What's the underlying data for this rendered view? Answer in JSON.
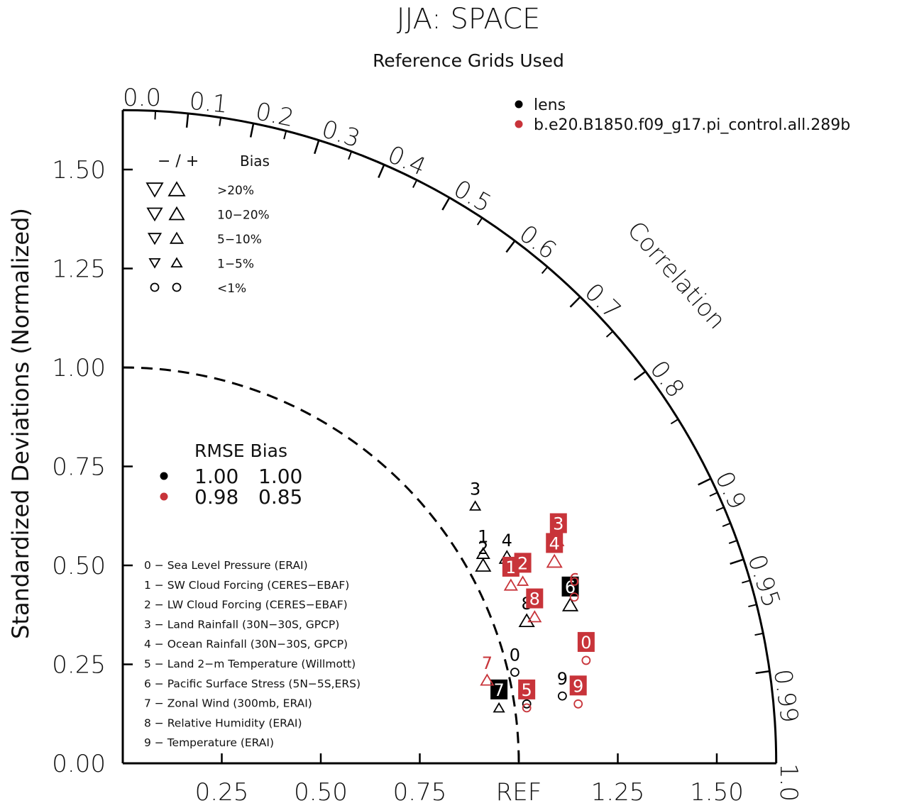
{
  "chart_data": {
    "type": "scatter",
    "subtype": "taylor-diagram",
    "title": "JJA: SPACE",
    "subtitle": "Reference Grids Used",
    "ylabel": "Standardized Deviations (Normalized)",
    "radial_label": "Correlation",
    "ref_label": "REF",
    "axis_range": [
      0,
      1.65
    ],
    "x_ticks": [
      "0.25",
      "0.50",
      "0.75",
      "REF",
      "1.25",
      "1.50"
    ],
    "x_tick_values": [
      0.25,
      0.5,
      0.75,
      1.0,
      1.25,
      1.5
    ],
    "y_ticks": [
      "0.00",
      "0.25",
      "0.50",
      "0.75",
      "1.00",
      "1.25",
      "1.50"
    ],
    "y_tick_values": [
      0,
      0.25,
      0.5,
      0.75,
      1.0,
      1.25,
      1.5
    ],
    "correlation_labels": [
      "0.0",
      "0.1",
      "0.2",
      "0.3",
      "0.4",
      "0.5",
      "0.6",
      "0.7",
      "0.8",
      "0.9",
      "0.95",
      "0.99",
      "1.0"
    ],
    "correlation_label_values": [
      0.0,
      0.1,
      0.2,
      0.3,
      0.4,
      0.5,
      0.6,
      0.7,
      0.8,
      0.9,
      0.95,
      0.99,
      1.0
    ],
    "correlation_minor_ticks": [
      0.05,
      0.15,
      0.25,
      0.35,
      0.45,
      0.55,
      0.65,
      0.75,
      0.85,
      0.91,
      0.92,
      0.93,
      0.94,
      0.96,
      0.97,
      0.98
    ],
    "ref_arc_radius": 1.0,
    "legend": {
      "series_placement": "top-right",
      "series": [
        {
          "name": "lens",
          "color": "#000000"
        },
        {
          "name": "b.e20.B1850.f09_g17.pi_control.all.289b",
          "color": "#c8343a"
        }
      ],
      "bias_key": {
        "header": [
          "−  /  +",
          "Bias"
        ],
        "rows": [
          {
            "label": ">20%",
            "symbol": "triangle",
            "size": 5
          },
          {
            "label": "10−20%",
            "symbol": "triangle",
            "size": 4
          },
          {
            "label": "5−10%",
            "symbol": "triangle",
            "size": 3
          },
          {
            "label": "1−5%",
            "symbol": "triangle",
            "size": 2
          },
          {
            "label": "<1%",
            "symbol": "circle",
            "size": 2
          }
        ]
      },
      "rmse_table": {
        "header": "RMSE Bias",
        "rows": [
          {
            "color": "#000000",
            "rmse": "1.00",
            "bias": "1.00"
          },
          {
            "color": "#c8343a",
            "rmse": "0.98",
            "bias": "0.85"
          }
        ]
      },
      "variables": [
        "0 − Sea Level Pressure (ERAI)",
        "1 − SW Cloud Forcing (CERES−EBAF)",
        "2 − LW Cloud Forcing (CERES−EBAF)",
        "3 − Land Rainfall (30N−30S, GPCP)",
        "4 − Ocean Rainfall (30N−30S, GPCP)",
        "5 − Land 2−m Temperature (Willmott)",
        "6 − Pacific Surface Stress (5N−5S,ERS)",
        "7 − Zonal Wind (300mb, ERAI)",
        "8 − Relative Humidity (ERAI)",
        "9 − Temperature (ERAI)"
      ]
    },
    "series": [
      {
        "name": "lens",
        "color": "#000000",
        "points": [
          {
            "label": "0",
            "x": 0.99,
            "y": 0.23,
            "symbol": "circle",
            "size": 2,
            "boxed": false
          },
          {
            "label": "1",
            "x": 0.91,
            "y": 0.53,
            "symbol": "triangle-up",
            "size": 3,
            "boxed": false
          },
          {
            "label": "2",
            "x": 0.91,
            "y": 0.5,
            "symbol": "triangle-up",
            "size": 4,
            "boxed": false
          },
          {
            "label": "3",
            "x": 0.89,
            "y": 0.65,
            "symbol": "triangle-up",
            "size": 2,
            "boxed": false
          },
          {
            "label": "4",
            "x": 0.97,
            "y": 0.52,
            "symbol": "triangle-up",
            "size": 4,
            "boxed": false
          },
          {
            "label": "5",
            "x": 1.02,
            "y": 0.15,
            "symbol": "circle",
            "size": 2,
            "boxed": false
          },
          {
            "label": "6",
            "x": 1.13,
            "y": 0.4,
            "symbol": "triangle-up",
            "size": 4,
            "boxed": true
          },
          {
            "label": "7",
            "x": 0.95,
            "y": 0.14,
            "symbol": "triangle-up",
            "size": 2,
            "boxed": true
          },
          {
            "label": "8",
            "x": 1.02,
            "y": 0.36,
            "symbol": "triangle-up",
            "size": 4,
            "boxed": false
          },
          {
            "label": "9",
            "x": 1.11,
            "y": 0.17,
            "symbol": "circle",
            "size": 2,
            "boxed": false
          }
        ]
      },
      {
        "name": "b.e20.B1850.f09_g17.pi_control.all.289b",
        "color": "#c8343a",
        "points": [
          {
            "label": "0",
            "x": 1.17,
            "y": 0.26,
            "symbol": "circle",
            "size": 2,
            "boxed": true
          },
          {
            "label": "1",
            "x": 0.98,
            "y": 0.45,
            "symbol": "triangle-up",
            "size": 3,
            "boxed": true
          },
          {
            "label": "2",
            "x": 1.01,
            "y": 0.46,
            "symbol": "triangle-up",
            "size": 2,
            "boxed": true
          },
          {
            "label": "3",
            "x": 1.1,
            "y": 0.56,
            "symbol": "triangle-up",
            "size": 2,
            "boxed": true
          },
          {
            "label": "4",
            "x": 1.09,
            "y": 0.51,
            "symbol": "triangle-up",
            "size": 4,
            "boxed": true
          },
          {
            "label": "5",
            "x": 1.02,
            "y": 0.14,
            "symbol": "circle",
            "size": 2,
            "boxed": true
          },
          {
            "label": "6",
            "x": 1.14,
            "y": 0.42,
            "symbol": "circle",
            "size": 2,
            "boxed": false
          },
          {
            "label": "7",
            "x": 0.92,
            "y": 0.21,
            "symbol": "triangle-up",
            "size": 3,
            "boxed": false
          },
          {
            "label": "8",
            "x": 1.04,
            "y": 0.37,
            "symbol": "triangle-up",
            "size": 3,
            "boxed": true
          },
          {
            "label": "9",
            "x": 1.15,
            "y": 0.15,
            "symbol": "circle",
            "size": 2,
            "boxed": true
          }
        ]
      }
    ]
  }
}
